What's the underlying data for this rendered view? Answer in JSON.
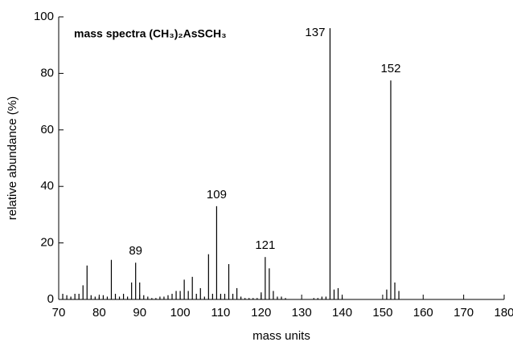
{
  "chart_data": {
    "type": "stem",
    "title": "mass spectra (CH₃)₂AsSCH₃",
    "x_label": "mass units",
    "y_label": "relative abundance (%)",
    "color": "#000000",
    "x": [
      71,
      72,
      73,
      74,
      75,
      76,
      77,
      78,
      79,
      80,
      81,
      82,
      83,
      84,
      85,
      86,
      87,
      88,
      89,
      90,
      91,
      92,
      93,
      94,
      95,
      96,
      97,
      98,
      99,
      100,
      101,
      102,
      103,
      104,
      105,
      106,
      107,
      108,
      109,
      110,
      111,
      112,
      113,
      114,
      115,
      116,
      117,
      118,
      119,
      120,
      121,
      122,
      123,
      124,
      125,
      126,
      133,
      134,
      135,
      136,
      137,
      138,
      139,
      140,
      151,
      152,
      153,
      154
    ],
    "values": [
      2,
      1.5,
      1,
      2,
      2,
      5,
      12,
      1.5,
      1,
      1,
      1.5,
      1,
      14,
      2,
      1,
      2,
      1,
      6,
      13,
      6,
      1.5,
      1,
      0.5,
      0.5,
      1,
      1,
      1.5,
      2,
      3,
      3,
      7,
      3,
      8,
      2,
      4,
      1,
      16,
      2,
      33,
      2,
      2,
      12.5,
      2,
      4,
      1,
      0.5,
      0.5,
      0.5,
      0.5,
      2.5,
      15,
      11,
      3,
      1,
      1,
      0.5,
      0.5,
      0.5,
      1,
      1,
      96,
      3.5,
      4,
      1,
      3.5,
      77.5,
      6,
      3
    ],
    "annotations": [
      89,
      109,
      121,
      137,
      152
    ],
    "xlim": [
      70,
      180
    ],
    "xticks": [
      70,
      80,
      90,
      100,
      110,
      120,
      130,
      140,
      150,
      160,
      170,
      180
    ],
    "ylim": [
      0,
      100
    ],
    "yticks": [
      0,
      20,
      40,
      60,
      80,
      100
    ]
  }
}
